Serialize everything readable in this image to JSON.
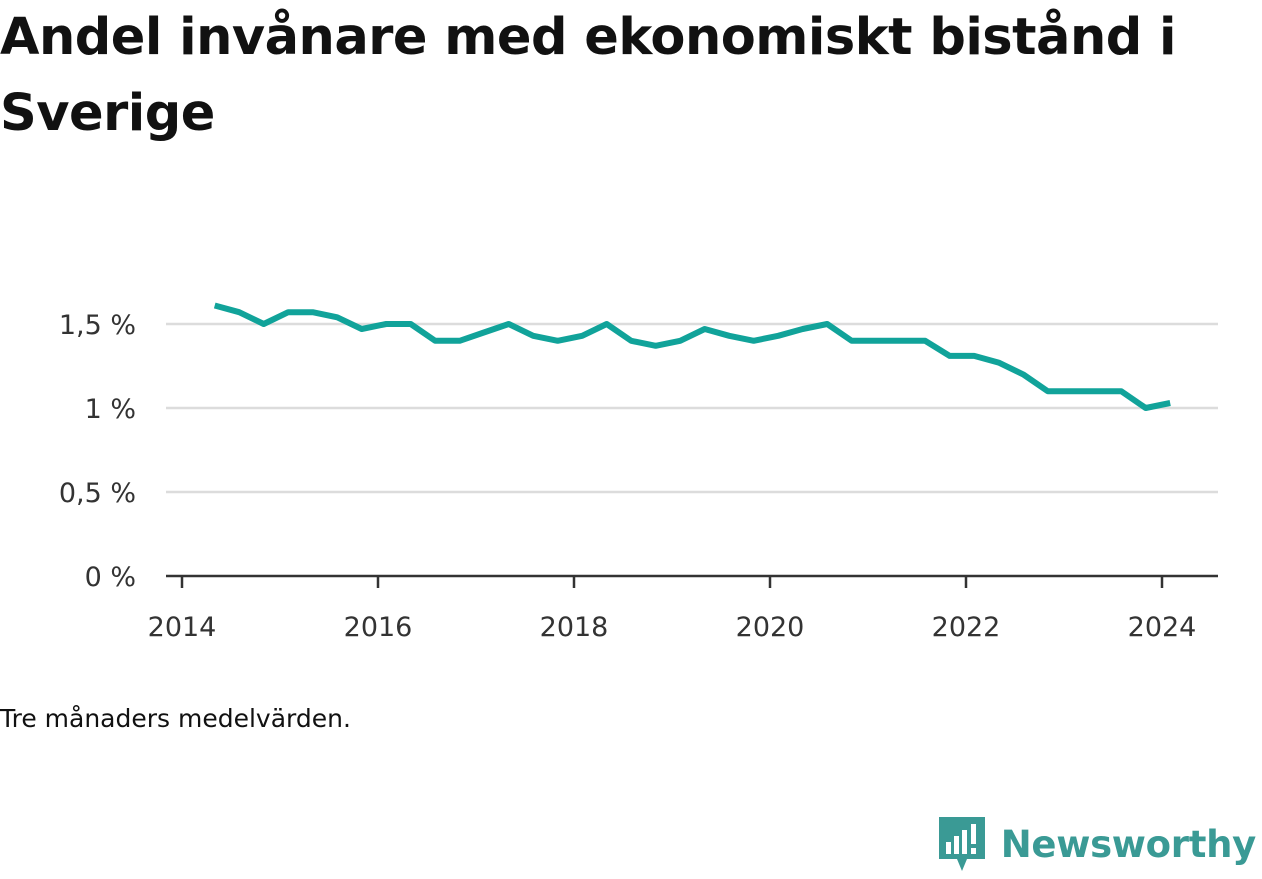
{
  "title": "Andel invånare med ekonomiskt bistånd i Sverige",
  "note": "Tre månaders medelvärden.",
  "brand": {
    "name": "Newsworthy",
    "icon": "newsworthy-logo-icon",
    "color": "#3a9a95"
  },
  "chart_data": {
    "type": "line",
    "title": "Andel invånare med ekonomiskt bistånd i Sverige",
    "xlabel": "",
    "ylabel": "",
    "x_ticks": [
      "2014",
      "2016",
      "2018",
      "2020",
      "2022",
      "2024"
    ],
    "y_ticks": [
      "0 %",
      "0,5 %",
      "1 %",
      "1,5 %"
    ],
    "ylim": [
      0,
      1.75
    ],
    "xlim": [
      "2014-01",
      "2024-06"
    ],
    "grid": true,
    "line_color": "#11a39a",
    "series": [
      {
        "x": [
          "2014-05",
          "2014-08",
          "2014-11",
          "2015-02",
          "2015-05",
          "2015-08",
          "2015-11",
          "2016-02",
          "2016-05",
          "2016-08",
          "2016-11",
          "2017-02",
          "2017-05",
          "2017-08",
          "2017-11",
          "2018-02",
          "2018-05",
          "2018-08",
          "2018-11",
          "2019-02",
          "2019-05",
          "2019-08",
          "2019-11",
          "2020-02",
          "2020-05",
          "2020-08",
          "2020-11",
          "2021-02",
          "2021-05",
          "2021-08",
          "2021-11",
          "2022-02",
          "2022-05",
          "2022-08",
          "2022-11",
          "2023-02",
          "2023-05",
          "2023-08",
          "2023-11",
          "2024-02"
        ],
        "values": [
          1.61,
          1.57,
          1.5,
          1.57,
          1.57,
          1.54,
          1.47,
          1.5,
          1.5,
          1.4,
          1.4,
          1.45,
          1.5,
          1.43,
          1.4,
          1.43,
          1.5,
          1.4,
          1.37,
          1.4,
          1.47,
          1.43,
          1.4,
          1.43,
          1.47,
          1.5,
          1.4,
          1.4,
          1.4,
          1.4,
          1.31,
          1.31,
          1.27,
          1.2,
          1.1,
          1.1,
          1.1,
          1.1,
          1.0,
          1.03
        ]
      }
    ]
  }
}
